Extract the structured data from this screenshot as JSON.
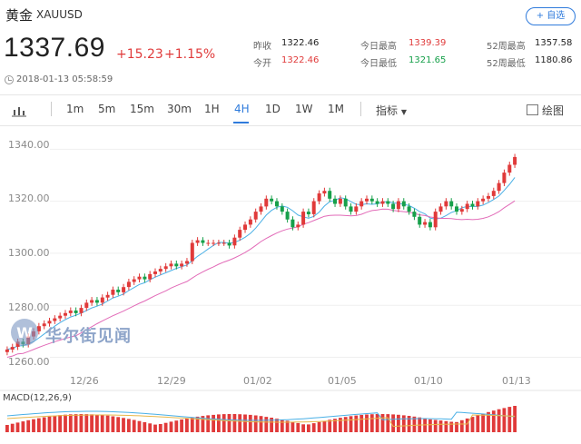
{
  "header": {
    "name": "黄金",
    "code": "XAUUSD",
    "fav_label": "+ 自选"
  },
  "quote": {
    "price": "1337.69",
    "change": "+15.23",
    "change_pct": "+1.15%"
  },
  "stats": [
    {
      "label": "昨收",
      "value": "1322.46",
      "tone": "neutral"
    },
    {
      "label": "今开",
      "value": "1322.46",
      "tone": "red"
    },
    {
      "label": "今日最高",
      "value": "1339.39",
      "tone": "red"
    },
    {
      "label": "今日最低",
      "value": "1321.65",
      "tone": "green"
    },
    {
      "label": "52周最高",
      "value": "1357.58",
      "tone": "neutral"
    },
    {
      "label": "52周最低",
      "value": "1180.86",
      "tone": "neutral"
    }
  ],
  "timestamp": "2018-01-13 05:58:59",
  "toolbar": {
    "timeframes": [
      "1m",
      "5m",
      "15m",
      "30m",
      "1H",
      "4H",
      "1D",
      "1W",
      "1M"
    ],
    "active": "4H",
    "indicator_label": "指标",
    "draw_label": "绘图"
  },
  "watermark": "华尔街见闻",
  "colors": {
    "up": "#e03a3a",
    "down": "#16a04a",
    "accent": "#2f7bdc",
    "ma_blue": "#4ab0e6",
    "ma_pink": "#e26bb8",
    "ma_yellow": "#e8b74a"
  },
  "chart_data": {
    "type": "candlestick",
    "y_ticks": [
      "1340.00",
      "1320.00",
      "1300.00",
      "1280.00",
      "1260.00"
    ],
    "ylim": [
      1256,
      1345
    ],
    "x_ticks": [
      "12/26",
      "12/29",
      "01/02",
      "01/05",
      "01/10",
      "01/13"
    ],
    "macd_label": "MACD(12,26,9)",
    "close_series": [
      1263,
      1264,
      1266,
      1265,
      1268,
      1270,
      1272,
      1273,
      1274,
      1275,
      1276,
      1277,
      1278,
      1277,
      1279,
      1281,
      1282,
      1281,
      1283,
      1284,
      1286,
      1285,
      1287,
      1289,
      1290,
      1291,
      1290,
      1292,
      1293,
      1294,
      1295,
      1296,
      1295,
      1296,
      1297,
      1304,
      1305,
      1304,
      1304,
      1304,
      1304,
      1304,
      1303,
      1306,
      1309,
      1311,
      1313,
      1316,
      1318,
      1321,
      1320,
      1318,
      1316,
      1313,
      1310,
      1311,
      1316,
      1315,
      1320,
      1323,
      1324,
      1321,
      1319,
      1321,
      1318,
      1316,
      1318,
      1320,
      1321,
      1320,
      1319,
      1320,
      1319,
      1317,
      1320,
      1318,
      1316,
      1314,
      1311,
      1312,
      1310,
      1316,
      1318,
      1320,
      1318,
      1316,
      1317,
      1319,
      1318,
      1320,
      1321,
      1322,
      1324,
      1327,
      1331,
      1334,
      1337
    ]
  }
}
